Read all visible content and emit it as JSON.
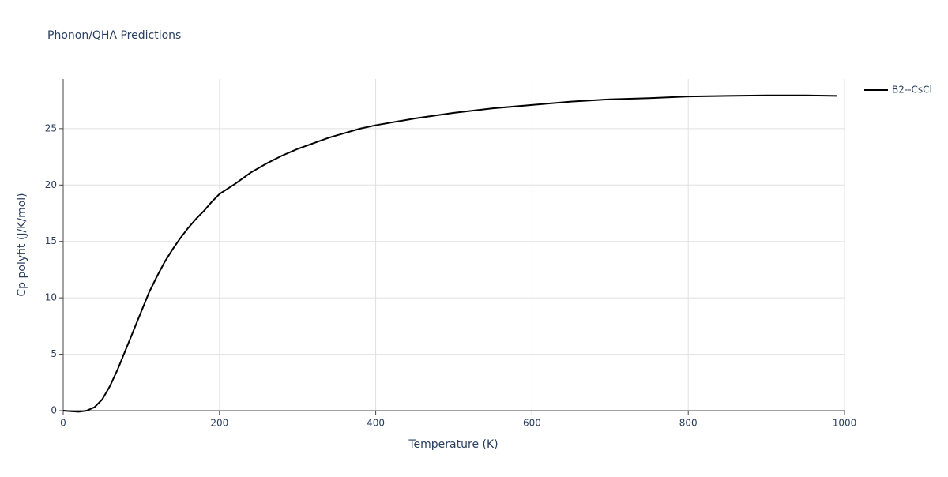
{
  "chart_data": {
    "type": "line",
    "title": "Phonon/QHA Predictions",
    "x_label": "Temperature (K)",
    "y_label": "Cp polyfit (J/K/mol)",
    "x": [
      0,
      10,
      20,
      30,
      40,
      50,
      60,
      70,
      80,
      90,
      100,
      110,
      120,
      130,
      140,
      150,
      160,
      170,
      180,
      190,
      200,
      220,
      240,
      260,
      280,
      300,
      320,
      340,
      360,
      380,
      400,
      450,
      500,
      550,
      600,
      650,
      700,
      750,
      800,
      850,
      900,
      950,
      990
    ],
    "series": [
      {
        "name": "B2--CsCl",
        "color": "#000000",
        "values": [
          0,
          -0.05,
          -0.1,
          0,
          0.3,
          1.0,
          2.2,
          3.7,
          5.4,
          7.1,
          8.8,
          10.5,
          11.9,
          13.2,
          14.3,
          15.3,
          16.2,
          17.0,
          17.7,
          18.5,
          19.2,
          20.1,
          21.1,
          21.9,
          22.6,
          23.2,
          23.7,
          24.2,
          24.6,
          25.0,
          25.3,
          25.9,
          26.4,
          26.8,
          27.1,
          27.4,
          27.6,
          27.7,
          27.85,
          27.9,
          27.95,
          27.95,
          27.9
        ]
      }
    ],
    "xlim": [
      0,
      1000
    ],
    "xticks": [
      0,
      200,
      400,
      600,
      800,
      1000
    ],
    "ylim": [
      0,
      29.4
    ],
    "yticks": [
      0,
      5,
      10,
      15,
      20,
      25
    ],
    "grid": true,
    "legend": "right"
  }
}
